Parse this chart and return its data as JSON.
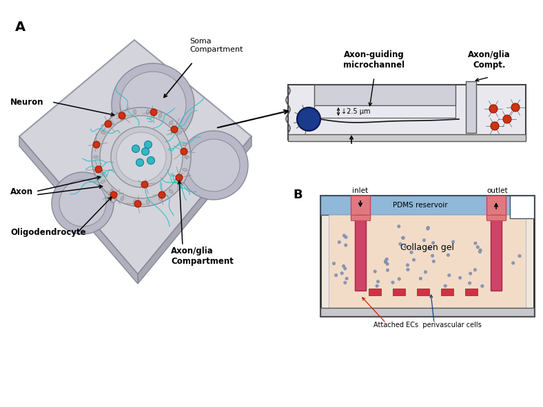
{
  "bg_color": "#ffffff",
  "fig_width": 7.88,
  "fig_height": 5.91,
  "panel_A_label": "A",
  "panel_B_label": "B",
  "label_neuron": "Neuron",
  "label_axon": "Axon",
  "label_oligo": "Oligodendrocyte",
  "label_soma": "Soma\nCompartment",
  "label_axon_glia_comp": "Axon/glia\nCompartment",
  "label_axon_guiding": "Axon-guiding\nmicrochannel",
  "label_axon_glia_compt": "Axon/glia\nCompt.",
  "label_25um": "↓2.5 μm",
  "label_inlet": "inlet",
  "label_outlet": "outlet",
  "label_pdms": "PDMS reservoir",
  "label_collagen": "Collagen gel",
  "label_attached": "Attached ECs  perivascular cells",
  "color_blue_cell": "#1a3a8c",
  "color_red_cell": "#cc3311",
  "color_chip_light": "#d4d4dc",
  "color_chip_mid": "#c0c0cc",
  "color_chip_dark": "#a8a8b4",
  "color_blue_pdms": "#90b8d8",
  "color_pink_channel": "#e07080",
  "color_peach_gel": "#f2dcc8",
  "color_cyan_axon": "#30c0c8",
  "color_dark_outline": "#222222",
  "color_gray_section": "#e0e0e8",
  "color_channel_bg": "#e8e8f0",
  "color_well": "#b8b8c8",
  "color_pdms_light": "#c8dce8"
}
